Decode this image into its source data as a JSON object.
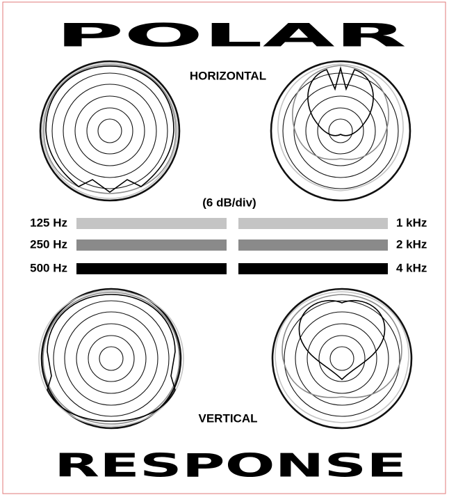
{
  "header": {
    "title": "POLAR"
  },
  "footer": {
    "title": "RESPONSE"
  },
  "labels": {
    "horizontal": "HORIZONTAL",
    "vertical": "VERTICAL",
    "scale": "(6 dB/div)"
  },
  "legend": {
    "left": [
      {
        "label": "125 Hz",
        "color": "#c4c4c4"
      },
      {
        "label": "250 Hz",
        "color": "#8a8a8a"
      },
      {
        "label": "500 Hz",
        "color": "#000000"
      }
    ],
    "right": [
      {
        "label": "1 kHz",
        "color": "#c4c4c4"
      },
      {
        "label": "2 kHz",
        "color": "#8a8a8a"
      },
      {
        "label": "4 kHz",
        "color": "#000000"
      }
    ]
  }
}
